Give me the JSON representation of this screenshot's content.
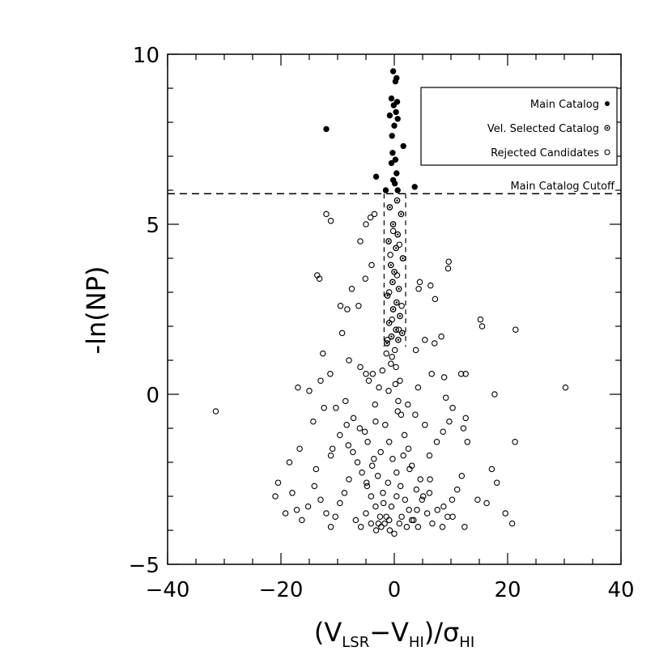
{
  "chart_data": {
    "type": "scatter",
    "xlabel": "(V_LSR - V_HI) / σ_HI",
    "ylabel": "-ln(NP)",
    "xlim": [
      -40,
      40
    ],
    "ylim": [
      -5,
      10
    ],
    "grid": false,
    "x_ticks": [
      -40,
      -20,
      0,
      20,
      40
    ],
    "y_ticks": [
      -5,
      0,
      5,
      10
    ],
    "x_tick_labels": [
      "−40",
      "−20",
      "0",
      "20",
      "40"
    ],
    "y_tick_labels": [
      "−5",
      "0",
      "5",
      "10"
    ],
    "legend_placement": "top-right",
    "cutoff": {
      "label": "Main Catalog Cutoff",
      "y": 5.9
    },
    "velocity_window": {
      "x": [
        -1.8,
        2.0
      ],
      "y": [
        1.4,
        5.9
      ]
    },
    "series": [
      {
        "name": "Main Catalog",
        "marker": "filled",
        "points": [
          [
            -0.2,
            9.5
          ],
          [
            0.2,
            9.2
          ],
          [
            0.4,
            9.3
          ],
          [
            -0.5,
            8.7
          ],
          [
            0.5,
            8.6
          ],
          [
            -0.1,
            8.5
          ],
          [
            0.3,
            8.3
          ],
          [
            -0.8,
            8.2
          ],
          [
            0.6,
            8.1
          ],
          [
            0.0,
            7.9
          ],
          [
            -12,
            7.8
          ],
          [
            -0.4,
            7.6
          ],
          [
            1.6,
            7.3
          ],
          [
            -0.3,
            7.1
          ],
          [
            0.2,
            6.9
          ],
          [
            -0.5,
            6.8
          ],
          [
            0.4,
            6.5
          ],
          [
            -3.2,
            6.4
          ],
          [
            -0.2,
            6.3
          ],
          [
            0.1,
            6.2
          ],
          [
            3.6,
            6.1
          ],
          [
            -1.5,
            6.0
          ],
          [
            0.6,
            6.0
          ]
        ]
      },
      {
        "name": "Vel. Selected Catalog",
        "marker": "dotted",
        "points": [
          [
            0.5,
            5.7
          ],
          [
            -0.8,
            5.5
          ],
          [
            1.2,
            5.3
          ],
          [
            -0.2,
            5.0
          ],
          [
            0.6,
            4.7
          ],
          [
            -1.0,
            4.5
          ],
          [
            0.3,
            4.3
          ],
          [
            1.5,
            4.0
          ],
          [
            -0.6,
            3.8
          ],
          [
            0.0,
            3.6
          ],
          [
            -0.3,
            3.3
          ],
          [
            0.8,
            3.1
          ],
          [
            -1.2,
            2.9
          ],
          [
            0.4,
            2.7
          ],
          [
            -0.2,
            2.5
          ],
          [
            1.0,
            2.3
          ],
          [
            -0.9,
            2.1
          ],
          [
            0.3,
            1.9
          ],
          [
            1.4,
            1.8
          ],
          [
            -0.5,
            1.7
          ],
          [
            0.7,
            1.6
          ],
          [
            -1.3,
            1.5
          ]
        ]
      },
      {
        "name": "Rejected Candidates",
        "marker": "open",
        "points": [
          [
            -12,
            5.3
          ],
          [
            -11.2,
            5.1
          ],
          [
            -4.2,
            5.2
          ],
          [
            -3.5,
            5.3
          ],
          [
            -5,
            5.0
          ],
          [
            -6,
            4.5
          ],
          [
            -4,
            3.8
          ],
          [
            -5.1,
            3.4
          ],
          [
            -13.6,
            3.5
          ],
          [
            -13.2,
            3.4
          ],
          [
            -7.5,
            3.1
          ],
          [
            -9.5,
            2.6
          ],
          [
            -8.3,
            2.5
          ],
          [
            -6.3,
            2.6
          ],
          [
            -9.2,
            1.8
          ],
          [
            -12.6,
            1.2
          ],
          [
            -8,
            1.0
          ],
          [
            -11.3,
            0.6
          ],
          [
            -6,
            0.8
          ],
          [
            -5,
            0.6
          ],
          [
            -4.5,
            0.4
          ],
          [
            -3.8,
            0.6
          ],
          [
            -13,
            0.4
          ],
          [
            -15,
            0.1
          ],
          [
            -17,
            0.2
          ],
          [
            -31.5,
            -0.5
          ],
          [
            -14.3,
            -0.8
          ],
          [
            -12.4,
            -0.4
          ],
          [
            -10.3,
            -0.4
          ],
          [
            -8.6,
            -0.2
          ],
          [
            -16.7,
            -1.6
          ],
          [
            -20.5,
            -2.6
          ],
          [
            -18.5,
            -2.0
          ],
          [
            -21,
            -3.0
          ],
          [
            -19.2,
            -3.5
          ],
          [
            -13.8,
            -2.2
          ],
          [
            -11.2,
            -1.8
          ],
          [
            -8.1,
            -1.5
          ],
          [
            -5.2,
            -1.1
          ],
          [
            -3.3,
            -0.8
          ],
          [
            9.6,
            3.9
          ],
          [
            9.5,
            3.7
          ],
          [
            4.5,
            3.3
          ],
          [
            6.4,
            3.2
          ],
          [
            7.2,
            2.8
          ],
          [
            4.3,
            3.1
          ],
          [
            8.3,
            1.7
          ],
          [
            5.4,
            1.6
          ],
          [
            7.1,
            1.5
          ],
          [
            3.8,
            1.3
          ],
          [
            6.6,
            0.6
          ],
          [
            8.8,
            0.5
          ],
          [
            11.8,
            0.6
          ],
          [
            12.6,
            0.6
          ],
          [
            4.2,
            0.2
          ],
          [
            15.2,
            2.2
          ],
          [
            15.5,
            2.0
          ],
          [
            21.4,
            1.9
          ],
          [
            30.2,
            0.2
          ],
          [
            17.7,
            0.0
          ],
          [
            9.1,
            -0.1
          ],
          [
            10.3,
            -0.4
          ],
          [
            12.6,
            -0.7
          ],
          [
            12.2,
            -1.0
          ],
          [
            12.9,
            -1.4
          ],
          [
            21.3,
            -1.4
          ],
          [
            17.2,
            -2.2
          ],
          [
            18.1,
            -2.6
          ],
          [
            14.7,
            -3.1
          ],
          [
            16.3,
            -3.2
          ],
          [
            19.6,
            -3.5
          ],
          [
            20.8,
            -3.8
          ],
          [
            12.4,
            -3.9
          ],
          [
            10.3,
            -3.6
          ],
          [
            8.7,
            -3.3
          ],
          [
            6.2,
            -2.9
          ],
          [
            4.6,
            -2.5
          ],
          [
            3.1,
            -2.1
          ],
          [
            2.5,
            -1.6
          ],
          [
            1.8,
            -1.2
          ],
          [
            1.2,
            -0.6
          ],
          [
            0.7,
            -0.2
          ],
          [
            0.2,
            0.3
          ],
          [
            -0.6,
            0.9
          ],
          [
            -1.4,
            1.2
          ],
          [
            -2.1,
            0.7
          ],
          [
            -2.7,
            0.2
          ],
          [
            -3.4,
            -0.3
          ],
          [
            -1.6,
            -0.9
          ],
          [
            -0.9,
            -1.4
          ],
          [
            -0.3,
            -1.9
          ],
          [
            0.4,
            -2.3
          ],
          [
            1.1,
            -2.7
          ],
          [
            1.9,
            -3.1
          ],
          [
            2.6,
            -3.4
          ],
          [
            3.4,
            -3.7
          ],
          [
            4.2,
            -3.9
          ],
          [
            -0.8,
            -4.0
          ],
          [
            -1.7,
            -3.8
          ],
          [
            -2.5,
            -3.6
          ],
          [
            -3.3,
            -3.3
          ],
          [
            -4.1,
            -3.0
          ],
          [
            -4.9,
            -2.6
          ],
          [
            -5.7,
            -2.3
          ],
          [
            -6.5,
            -2.0
          ],
          [
            -7.3,
            -1.7
          ],
          [
            -8.0,
            -2.5
          ],
          [
            -8.8,
            -2.9
          ],
          [
            -9.6,
            -3.2
          ],
          [
            -10.4,
            -3.6
          ],
          [
            -11.2,
            -3.9
          ],
          [
            -12.0,
            -3.5
          ],
          [
            -13.0,
            -3.1
          ],
          [
            -14.1,
            -2.7
          ],
          [
            -15.2,
            -3.3
          ],
          [
            -16.3,
            -3.7
          ],
          [
            -17.2,
            -3.4
          ],
          [
            -18.0,
            -2.9
          ],
          [
            -6.8,
            -3.7
          ],
          [
            -5.9,
            -3.9
          ],
          [
            -5.0,
            -3.5
          ],
          [
            -4.1,
            -3.8
          ],
          [
            -3.2,
            -4.0
          ],
          [
            -2.3,
            -3.9
          ],
          [
            -1.4,
            -3.6
          ],
          [
            -0.5,
            -3.3
          ],
          [
            0.4,
            -3.0
          ],
          [
            1.3,
            -3.6
          ],
          [
            2.2,
            -3.9
          ],
          [
            3.1,
            -3.7
          ],
          [
            4.0,
            -3.4
          ],
          [
            4.9,
            -3.1
          ],
          [
            5.8,
            -3.5
          ],
          [
            6.7,
            -3.8
          ],
          [
            7.6,
            -3.4
          ],
          [
            8.5,
            -3.9
          ],
          [
            9.4,
            -3.6
          ],
          [
            10.2,
            -3.1
          ],
          [
            11.1,
            -2.8
          ],
          [
            11.9,
            -2.4
          ],
          [
            6.2,
            -1.8
          ],
          [
            7.5,
            -1.4
          ],
          [
            8.6,
            -1.1
          ],
          [
            9.7,
            -0.8
          ],
          [
            5.4,
            -0.9
          ],
          [
            3.7,
            -0.6
          ],
          [
            2.4,
            -0.3
          ],
          [
            -2.4,
            -1.7
          ],
          [
            -3.6,
            -1.9
          ],
          [
            -4.7,
            -1.4
          ],
          [
            -6.1,
            -1.0
          ],
          [
            -7.2,
            -0.7
          ],
          [
            -8.4,
            -0.9
          ],
          [
            -9.6,
            -1.2
          ],
          [
            -10.9,
            -1.6
          ],
          [
            -1.1,
            -2.6
          ],
          [
            -2.0,
            -2.9
          ],
          [
            -2.9,
            -2.4
          ],
          [
            -3.9,
            -2.1
          ],
          [
            -4.8,
            -2.7
          ],
          [
            1.6,
            -1.8
          ],
          [
            2.7,
            -2.2
          ],
          [
            3.9,
            -2.8
          ],
          [
            5.1,
            -3.0
          ],
          [
            6.3,
            -2.5
          ],
          [
            0.9,
            -3.8
          ],
          [
            0.0,
            -4.1
          ],
          [
            -0.9,
            -3.7
          ],
          [
            -1.9,
            -3.2
          ],
          [
            -2.8,
            -3.8
          ],
          [
            0.3,
            0.8
          ],
          [
            -0.4,
            1.1
          ],
          [
            1.0,
            0.4
          ],
          [
            -1.0,
            0.1
          ],
          [
            0.6,
            -0.5
          ],
          [
            -0.2,
            4.8
          ],
          [
            0.9,
            4.4
          ],
          [
            -0.7,
            4.1
          ],
          [
            0.5,
            3.5
          ],
          [
            -0.9,
            3.0
          ],
          [
            1.3,
            2.6
          ],
          [
            -0.4,
            2.2
          ],
          [
            0.8,
            1.9
          ],
          [
            -1.2,
            1.6
          ],
          [
            0.1,
            1.3
          ]
        ]
      }
    ]
  }
}
